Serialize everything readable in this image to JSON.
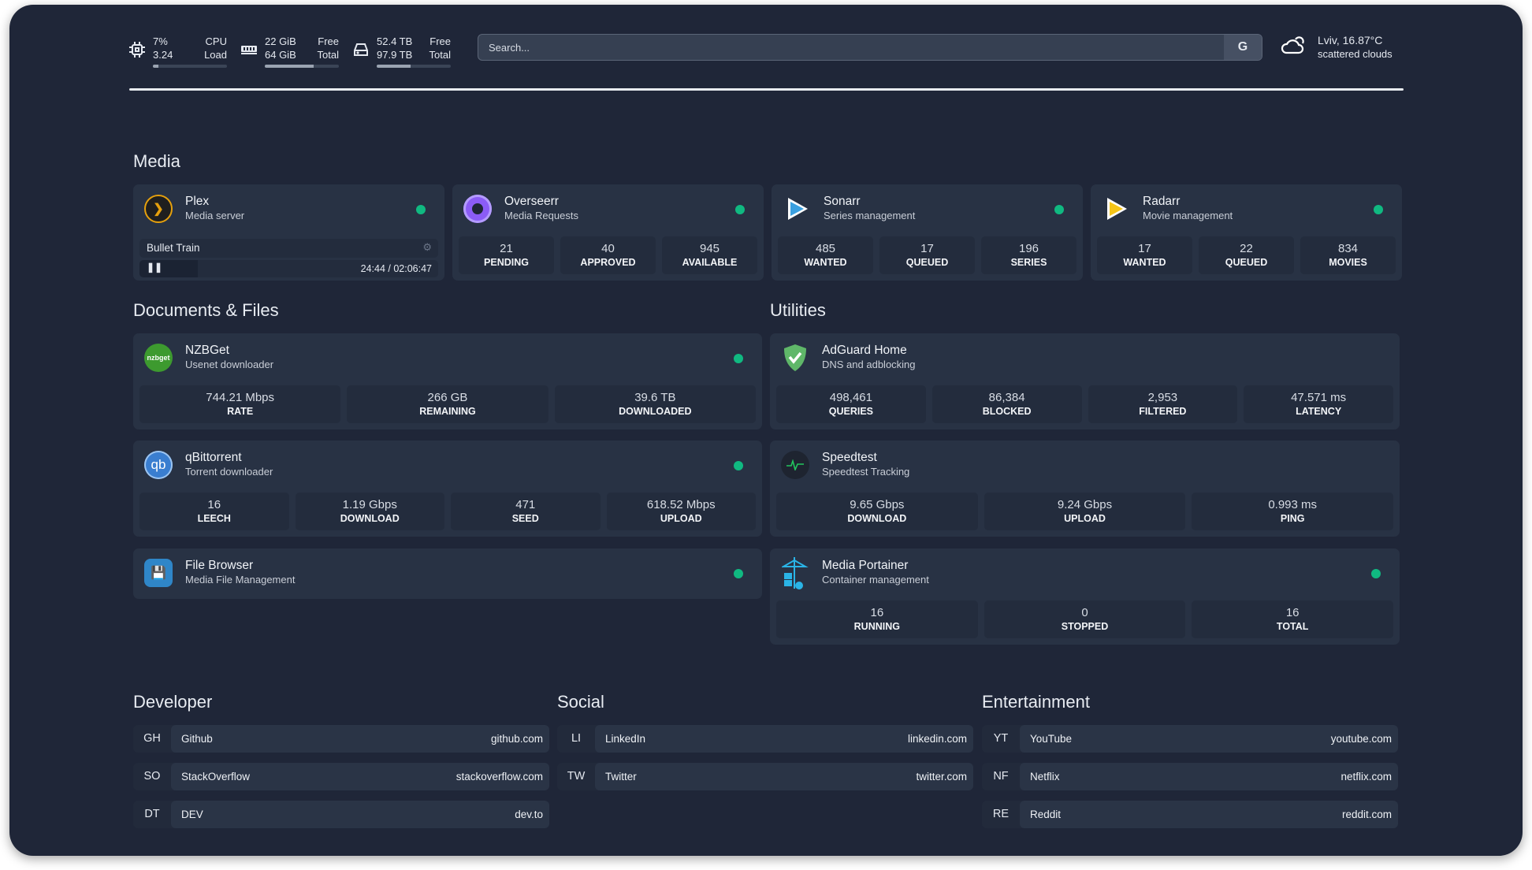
{
  "resources": {
    "cpu": {
      "icon": "cpu-icon",
      "value1": "7%",
      "label1": "CPU",
      "value2": "3.24",
      "label2": "Load",
      "usage_percent": 7
    },
    "memory": {
      "icon": "memory-icon",
      "value1": "22 GiB",
      "label1": "Free",
      "value2": "64 GiB",
      "label2": "Total",
      "usage_percent": 66
    },
    "disk": {
      "icon": "disk-icon",
      "value1": "52.4 TB",
      "label1": "Free",
      "value2": "97.9 TB",
      "label2": "Total",
      "usage_percent": 46
    }
  },
  "search": {
    "placeholder": "Search...",
    "provider_label": "G"
  },
  "weather": {
    "icon": "cloud-icon",
    "location_temp": "Lviv, 16.87°C",
    "description": "scattered clouds"
  },
  "status_color": "#10b981",
  "media": {
    "title": "Media",
    "plex": {
      "name": "Plex",
      "desc": "Media server",
      "now_playing": "Bullet Train",
      "time": "24:44 / 02:06:47",
      "progress_fraction": 0.195
    },
    "services": [
      {
        "name": "Overseerr",
        "desc": "Media Requests",
        "stats": [
          {
            "v": "21",
            "l": "PENDING"
          },
          {
            "v": "40",
            "l": "APPROVED"
          },
          {
            "v": "945",
            "l": "AVAILABLE"
          }
        ]
      },
      {
        "name": "Sonarr",
        "desc": "Series management",
        "stats": [
          {
            "v": "485",
            "l": "WANTED"
          },
          {
            "v": "17",
            "l": "QUEUED"
          },
          {
            "v": "196",
            "l": "SERIES"
          }
        ]
      },
      {
        "name": "Radarr",
        "desc": "Movie management",
        "stats": [
          {
            "v": "17",
            "l": "WANTED"
          },
          {
            "v": "22",
            "l": "QUEUED"
          },
          {
            "v": "834",
            "l": "MOVIES"
          }
        ]
      }
    ]
  },
  "documents": {
    "title": "Documents & Files",
    "nzbget": {
      "name": "NZBGet",
      "desc": "Usenet downloader",
      "icon_text": "nzbget",
      "stats": [
        {
          "v": "744.21 Mbps",
          "l": "RATE"
        },
        {
          "v": "266 GB",
          "l": "REMAINING"
        },
        {
          "v": "39.6 TB",
          "l": "DOWNLOADED"
        }
      ]
    },
    "qbit": {
      "name": "qBittorrent",
      "desc": "Torrent downloader",
      "icon_text": "qb",
      "stats": [
        {
          "v": "16",
          "l": "LEECH"
        },
        {
          "v": "1.19 Gbps",
          "l": "DOWNLOAD"
        },
        {
          "v": "471",
          "l": "SEED"
        },
        {
          "v": "618.52 Mbps",
          "l": "UPLOAD"
        }
      ]
    },
    "filebrowser": {
      "name": "File Browser",
      "desc": "Media File Management"
    }
  },
  "utilities": {
    "title": "Utilities",
    "adguard": {
      "name": "AdGuard Home",
      "desc": "DNS and adblocking",
      "stats": [
        {
          "v": "498,461",
          "l": "QUERIES"
        },
        {
          "v": "86,384",
          "l": "BLOCKED"
        },
        {
          "v": "2,953",
          "l": "FILTERED"
        },
        {
          "v": "47.571 ms",
          "l": "LATENCY"
        }
      ]
    },
    "speedtest": {
      "name": "Speedtest",
      "desc": "Speedtest Tracking",
      "stats": [
        {
          "v": "9.65 Gbps",
          "l": "DOWNLOAD"
        },
        {
          "v": "9.24 Gbps",
          "l": "UPLOAD"
        },
        {
          "v": "0.993 ms",
          "l": "PING"
        }
      ]
    },
    "portainer": {
      "name": "Media Portainer",
      "desc": "Container management",
      "stats": [
        {
          "v": "16",
          "l": "RUNNING"
        },
        {
          "v": "0",
          "l": "STOPPED"
        },
        {
          "v": "16",
          "l": "TOTAL"
        }
      ]
    }
  },
  "bookmarks": [
    {
      "title": "Developer",
      "items": [
        {
          "ab": "GH",
          "name": "Github",
          "url": "github.com"
        },
        {
          "ab": "SO",
          "name": "StackOverflow",
          "url": "stackoverflow.com"
        },
        {
          "ab": "DT",
          "name": "DEV",
          "url": "dev.to"
        }
      ]
    },
    {
      "title": "Social",
      "items": [
        {
          "ab": "LI",
          "name": "LinkedIn",
          "url": "linkedin.com"
        },
        {
          "ab": "TW",
          "name": "Twitter",
          "url": "twitter.com"
        }
      ]
    },
    {
      "title": "Entertainment",
      "items": [
        {
          "ab": "YT",
          "name": "YouTube",
          "url": "youtube.com"
        },
        {
          "ab": "NF",
          "name": "Netflix",
          "url": "netflix.com"
        },
        {
          "ab": "RE",
          "name": "Reddit",
          "url": "reddit.com"
        }
      ]
    }
  ]
}
